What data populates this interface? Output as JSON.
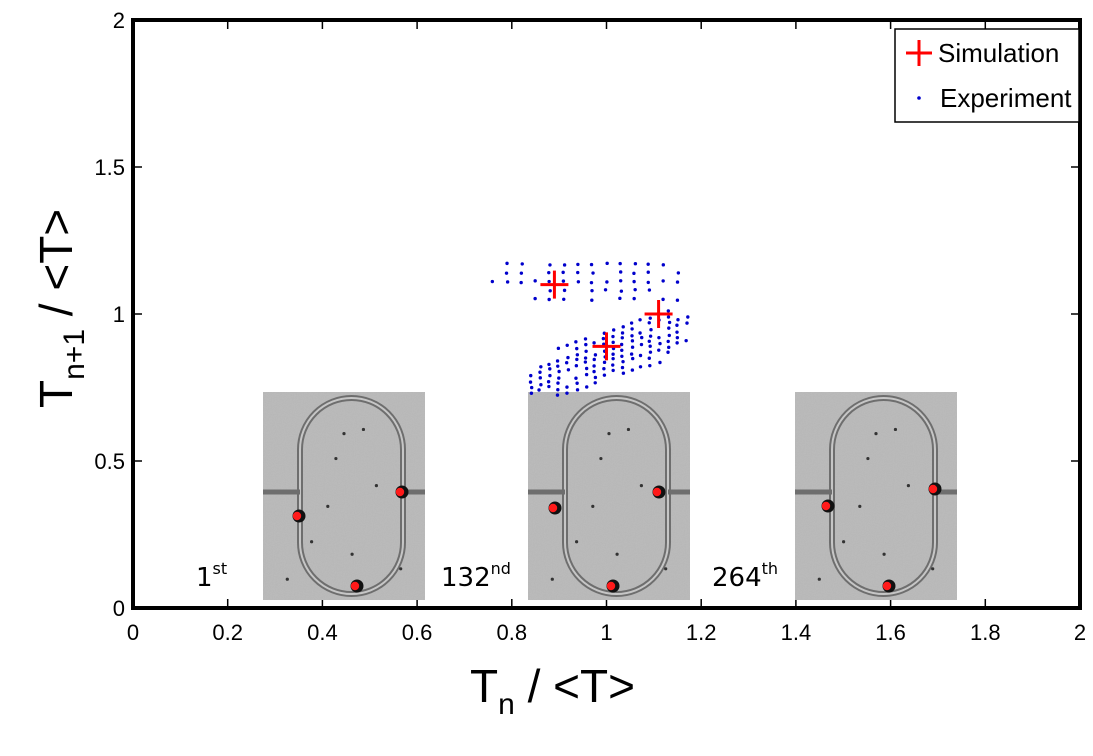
{
  "chart_data": {
    "type": "scatter",
    "xlabel": {
      "main": "T",
      "sub": "n",
      "rest": " / <T>"
    },
    "ylabel": {
      "main": "T",
      "sub": "n+1",
      "rest": " / <T>"
    },
    "xlim": [
      0,
      2
    ],
    "ylim": [
      0,
      2
    ],
    "x_ticks": [
      "0",
      "0.2",
      "0.4",
      "0.6",
      "0.8",
      "1",
      "1.2",
      "1.4",
      "1.6",
      "1.8",
      "2"
    ],
    "y_ticks": [
      "0",
      "0.5",
      "1",
      "1.5",
      "2"
    ],
    "grid": false,
    "legend_position": "top-right",
    "series": [
      {
        "name": "Simulation",
        "marker": "plus",
        "color": "#ff0000",
        "points": [
          {
            "x": 0.89,
            "y": 1.1
          },
          {
            "x": 1.0,
            "y": 0.89
          },
          {
            "x": 1.11,
            "y": 1.0
          }
        ]
      },
      {
        "name": "Experiment",
        "marker": "dot",
        "color": "#0000cc",
        "clusters": [
          {
            "x_range": [
              0.76,
              1.15
            ],
            "y_range": [
              1.05,
              1.17
            ],
            "diagonal": false
          },
          {
            "x_range": [
              0.84,
              1.17
            ],
            "y_range": [
              0.77,
              1.07
            ],
            "diagonal": true
          }
        ]
      }
    ],
    "insets": [
      {
        "number": "1",
        "suffix": "st",
        "color_gray": "#b9b9b9"
      },
      {
        "number": "132",
        "suffix": "nd",
        "color_gray": "#b9b9b9"
      },
      {
        "number": "264",
        "suffix": "th",
        "color_gray": "#b9b9b9"
      }
    ]
  }
}
